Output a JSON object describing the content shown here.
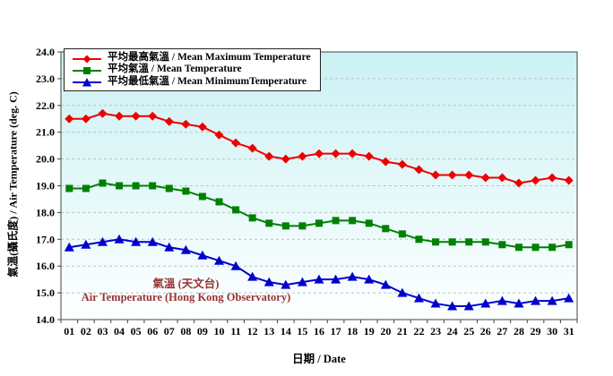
{
  "y_axis": {
    "title": "氣溫(攝氏度) / Air Temperature (deg. C)",
    "min": 14.0,
    "max": 24.0,
    "tick_step": 1.0,
    "tick_labels": [
      "24.0",
      "23.0",
      "22.0",
      "21.0",
      "20.0",
      "19.0",
      "18.0",
      "17.0",
      "16.0",
      "15.0",
      "14.0"
    ]
  },
  "x_axis": {
    "title": "日期 / Date"
  },
  "annotation": {
    "line1": "氣溫 (天文台)",
    "line2": "Air Temperature (Hong Kong Observatory)",
    "color": "#993333"
  },
  "colors": {
    "mean_max": "#EE0000",
    "mean": "#008000",
    "mean_min": "#0000CC",
    "gridline": "#BFBFBF",
    "axis": "#444444",
    "plot_bg_top": "#CBF1F4",
    "plot_bg_bottom": "#FDFFFF"
  },
  "chart_data": {
    "type": "line",
    "x": [
      "01",
      "02",
      "03",
      "04",
      "05",
      "06",
      "07",
      "08",
      "09",
      "10",
      "11",
      "12",
      "13",
      "14",
      "15",
      "16",
      "17",
      "18",
      "19",
      "20",
      "21",
      "22",
      "23",
      "24",
      "25",
      "26",
      "27",
      "28",
      "29",
      "30",
      "31"
    ],
    "series": [
      {
        "name": "平均最高氣溫 / Mean Maximum Temperature",
        "marker": "diamond",
        "color": "#EE0000",
        "values": [
          21.5,
          21.5,
          21.7,
          21.6,
          21.6,
          21.6,
          21.4,
          21.3,
          21.2,
          20.9,
          20.6,
          20.4,
          20.1,
          20.0,
          20.1,
          20.2,
          20.2,
          20.2,
          20.1,
          19.9,
          19.8,
          19.6,
          19.4,
          19.4,
          19.4,
          19.3,
          19.3,
          19.1,
          19.2,
          19.3,
          19.2
        ]
      },
      {
        "name": "平均氣溫 / Mean Temperature",
        "marker": "square",
        "color": "#008000",
        "values": [
          18.9,
          18.9,
          19.1,
          19.0,
          19.0,
          19.0,
          18.9,
          18.8,
          18.6,
          18.4,
          18.1,
          17.8,
          17.6,
          17.5,
          17.5,
          17.6,
          17.7,
          17.7,
          17.6,
          17.4,
          17.2,
          17.0,
          16.9,
          16.9,
          16.9,
          16.9,
          16.8,
          16.7,
          16.7,
          16.7,
          16.8
        ]
      },
      {
        "name": "平均最低氣溫 / Mean MinimumTemperature",
        "marker": "triangle",
        "color": "#0000CC",
        "values": [
          16.7,
          16.8,
          16.9,
          17.0,
          16.9,
          16.9,
          16.7,
          16.6,
          16.4,
          16.2,
          16.0,
          15.6,
          15.4,
          15.3,
          15.4,
          15.5,
          15.5,
          15.6,
          15.5,
          15.3,
          15.0,
          14.8,
          14.6,
          14.5,
          14.5,
          14.6,
          14.7,
          14.6,
          14.7,
          14.7,
          14.8
        ]
      }
    ],
    "ylim": [
      14.0,
      24.0
    ],
    "grid": "horizontal-dashed",
    "legend_position": "top-left-inside",
    "annotation": "氣溫 (天文台) / Air Temperature (Hong Kong Observatory)"
  }
}
